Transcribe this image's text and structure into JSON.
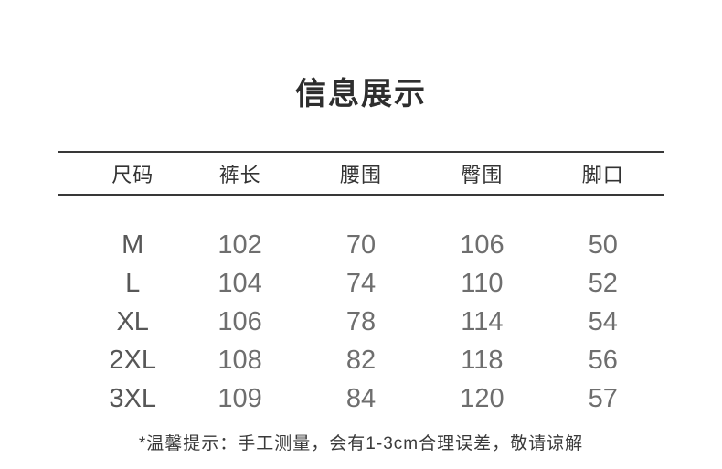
{
  "title": "信息展示",
  "table": {
    "columns": [
      "尺码",
      "裤长",
      "腰围",
      "臀围",
      "脚口"
    ],
    "rows": [
      [
        "M",
        "102",
        "70",
        "106",
        "50"
      ],
      [
        "L",
        "104",
        "74",
        "110",
        "52"
      ],
      [
        "XL",
        "106",
        "78",
        "114",
        "54"
      ],
      [
        "2XL",
        "108",
        "82",
        "118",
        "56"
      ],
      [
        "3XL",
        "109",
        "84",
        "120",
        "57"
      ]
    ]
  },
  "note": "*温馨提示：手工测量，会有1-3cm合理误差，敬请谅解",
  "colors": {
    "background": "#ffffff",
    "title_text": "#2e2e2e",
    "header_text": "#333333",
    "value_text": "#6e6e6e",
    "rule": "#383838"
  }
}
